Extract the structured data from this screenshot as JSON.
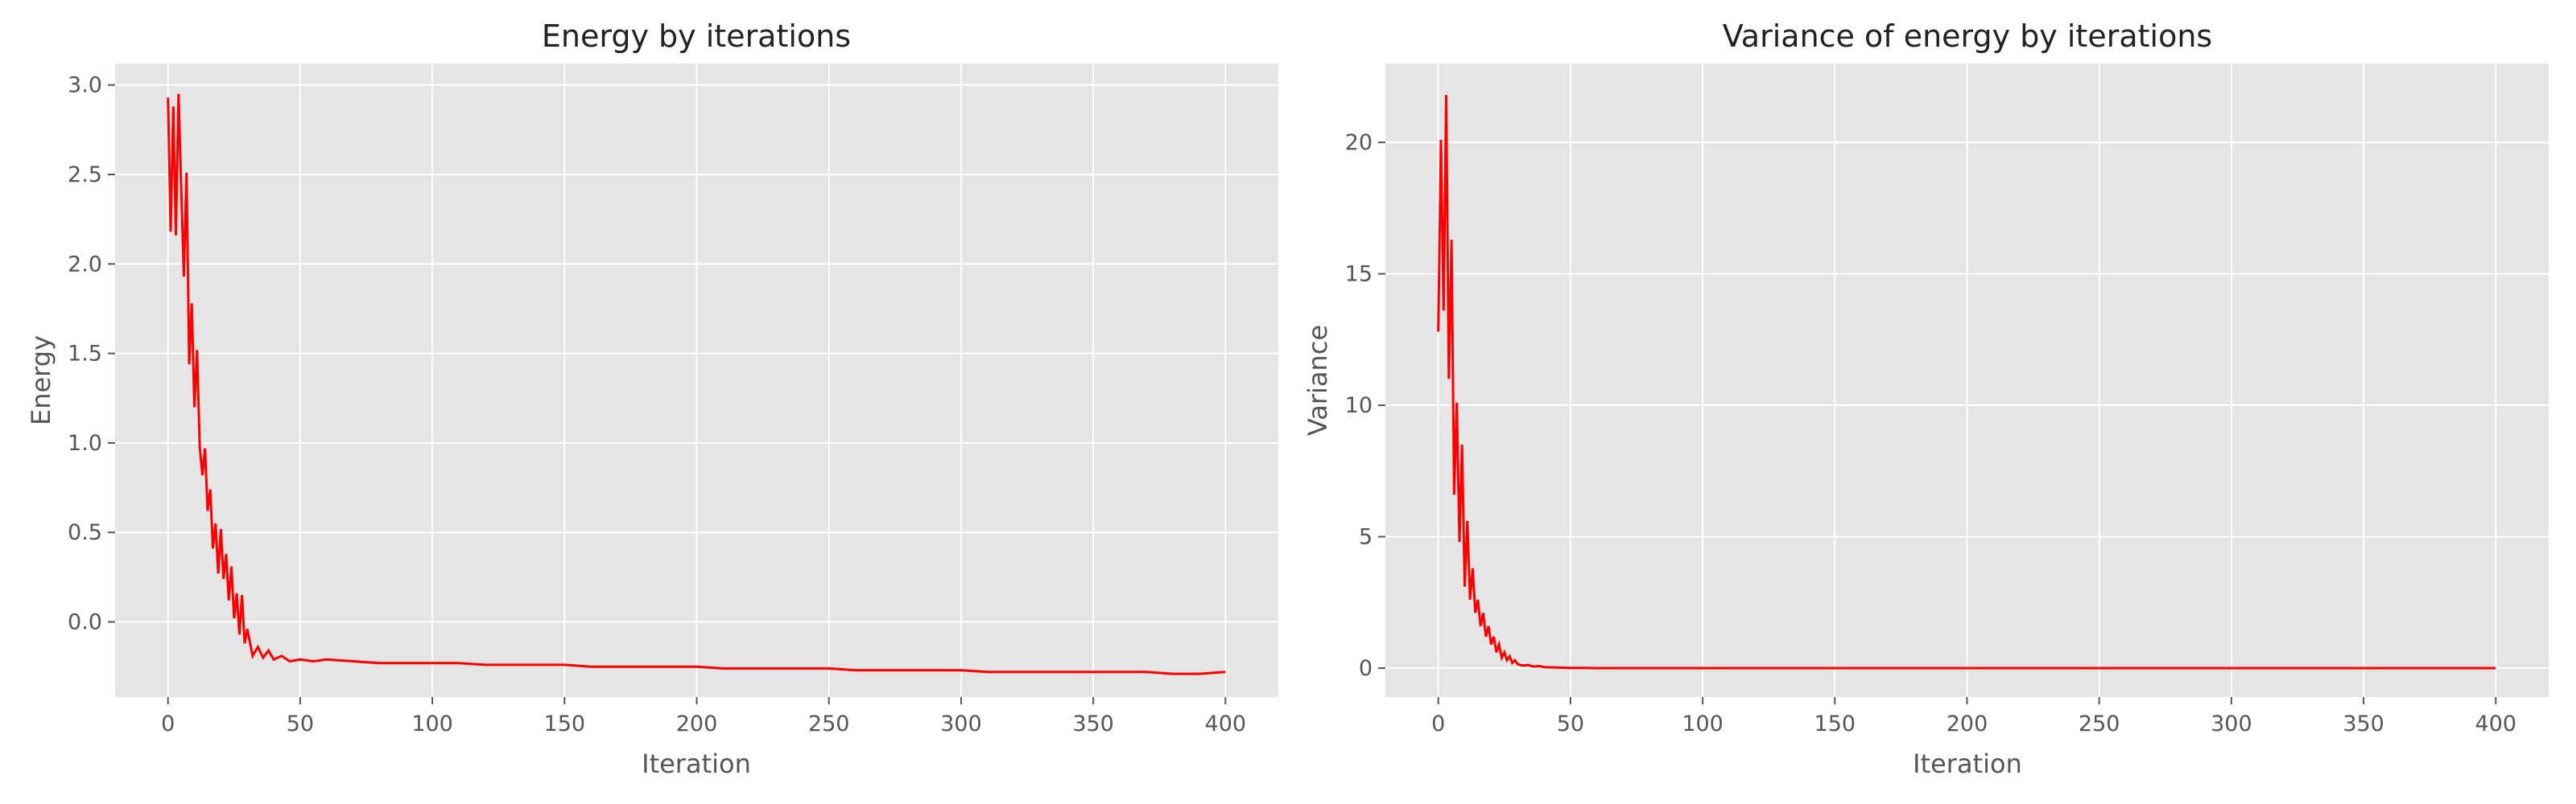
{
  "chart_data": [
    {
      "type": "line",
      "title": "Energy by iterations",
      "xlabel": "Iteration",
      "ylabel": "Energy",
      "xlim": [
        -20,
        420
      ],
      "ylim": [
        -0.42,
        3.12
      ],
      "xticks": [
        0,
        50,
        100,
        150,
        200,
        250,
        300,
        350,
        400
      ],
      "yticks": [
        0.0,
        0.5,
        1.0,
        1.5,
        2.0,
        2.5,
        3.0
      ],
      "ytick_labels": [
        "0.0",
        "0.5",
        "1.0",
        "1.5",
        "2.0",
        "2.5",
        "3.0"
      ],
      "grid": true,
      "line_color": "#ff0000",
      "background": "#e5e5e5",
      "series": [
        {
          "x": [
            0,
            1,
            2,
            3,
            4,
            5,
            6,
            7,
            8,
            9,
            10,
            11,
            12,
            13,
            14,
            15,
            16,
            17,
            18,
            19,
            20,
            21,
            22,
            23,
            24,
            25,
            26,
            27,
            28,
            29,
            30,
            32,
            34,
            36,
            38,
            40,
            43,
            46,
            50,
            55,
            60,
            70,
            80,
            90,
            100,
            110,
            120,
            130,
            140,
            150,
            160,
            170,
            180,
            190,
            200,
            210,
            220,
            230,
            240,
            250,
            260,
            270,
            280,
            290,
            300,
            310,
            320,
            330,
            340,
            350,
            360,
            370,
            380,
            390,
            400
          ],
          "y": [
            2.93,
            2.18,
            2.88,
            2.16,
            2.95,
            2.42,
            1.93,
            2.51,
            1.44,
            1.78,
            1.2,
            1.52,
            0.98,
            0.82,
            0.97,
            0.62,
            0.74,
            0.41,
            0.55,
            0.27,
            0.52,
            0.24,
            0.38,
            0.12,
            0.31,
            0.02,
            0.16,
            -0.07,
            0.15,
            -0.12,
            -0.04,
            -0.19,
            -0.14,
            -0.2,
            -0.16,
            -0.21,
            -0.19,
            -0.22,
            -0.21,
            -0.22,
            -0.21,
            -0.22,
            -0.23,
            -0.23,
            -0.23,
            -0.23,
            -0.24,
            -0.24,
            -0.24,
            -0.24,
            -0.25,
            -0.25,
            -0.25,
            -0.25,
            -0.25,
            -0.26,
            -0.26,
            -0.26,
            -0.26,
            -0.26,
            -0.27,
            -0.27,
            -0.27,
            -0.27,
            -0.27,
            -0.28,
            -0.28,
            -0.28,
            -0.28,
            -0.28,
            -0.28,
            -0.28,
            -0.29,
            -0.29,
            -0.28
          ]
        }
      ]
    },
    {
      "type": "line",
      "title": "Variance of energy by iterations",
      "xlabel": "Iteration",
      "ylabel": "Variance",
      "xlim": [
        -20,
        420
      ],
      "ylim": [
        -1.1,
        23.0
      ],
      "xticks": [
        0,
        50,
        100,
        150,
        200,
        250,
        300,
        350,
        400
      ],
      "yticks": [
        0,
        5,
        10,
        15,
        20
      ],
      "ytick_labels": [
        "0",
        "5",
        "10",
        "15",
        "20"
      ],
      "grid": true,
      "line_color": "#ff0000",
      "background": "#e5e5e5",
      "series": [
        {
          "x": [
            0,
            1,
            2,
            3,
            4,
            5,
            6,
            7,
            8,
            9,
            10,
            11,
            12,
            13,
            14,
            15,
            16,
            17,
            18,
            19,
            20,
            21,
            22,
            23,
            24,
            25,
            26,
            27,
            28,
            29,
            30,
            32,
            34,
            36,
            38,
            40,
            43,
            46,
            50,
            55,
            60,
            80,
            100,
            150,
            200,
            250,
            300,
            350,
            400
          ],
          "y": [
            12.8,
            20.1,
            13.6,
            21.8,
            11.0,
            16.3,
            6.6,
            10.1,
            4.8,
            8.5,
            3.1,
            5.6,
            2.6,
            3.8,
            2.1,
            2.6,
            1.6,
            2.1,
            1.2,
            1.6,
            0.9,
            1.2,
            0.6,
            0.9,
            0.4,
            0.6,
            0.3,
            0.45,
            0.2,
            0.3,
            0.15,
            0.1,
            0.12,
            0.06,
            0.08,
            0.04,
            0.03,
            0.02,
            0.01,
            0.01,
            0.0,
            0.0,
            0.0,
            0.0,
            0.0,
            0.0,
            0.0,
            0.0,
            0.0
          ]
        }
      ]
    }
  ]
}
